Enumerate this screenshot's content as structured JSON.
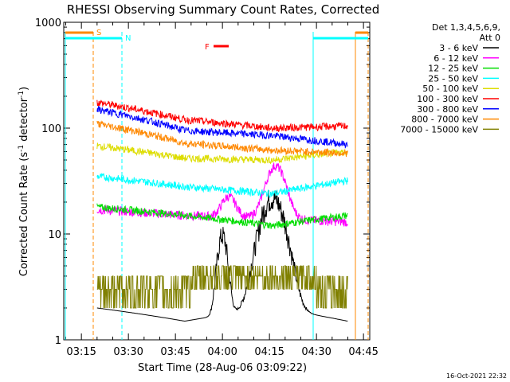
{
  "chart_data": {
    "type": "line",
    "title": "RHESSI Observing Summary Count Rates, Corrected",
    "xlabel": "Start Time (28-Aug-06 03:09:22)",
    "ylabel_main": "Corrected Count Rate (s",
    "ylabel_sup1": "-1",
    "ylabel_mid": " detector",
    "ylabel_sup2": "-1",
    "ylabel_end": ")",
    "xlim": [
      "03:09:22",
      "04:47:00"
    ],
    "ylim": [
      1,
      1000
    ],
    "yscale": "log",
    "x_ticks": [
      "03:15",
      "03:30",
      "03:45",
      "04:00",
      "04:15",
      "04:30",
      "04:45"
    ],
    "y_ticks": [
      "1",
      "10",
      "100",
      "1000"
    ],
    "legend": {
      "placement": "right",
      "header1": "Det 1,3,4,5,6,9,",
      "header2": "Att 0"
    },
    "series": [
      {
        "name": "3 - 6 keV",
        "color": "#000000"
      },
      {
        "name": "6 - 12 keV",
        "color": "#ff00ff"
      },
      {
        "name": "12 - 25 keV",
        "color": "#00dd00"
      },
      {
        "name": "25 - 50 keV",
        "color": "#00ffff"
      },
      {
        "name": "50 - 100 keV",
        "color": "#dddd00"
      },
      {
        "name": "100 - 300 keV",
        "color": "#ff0000"
      },
      {
        "name": "300 - 800 keV",
        "color": "#0000ff"
      },
      {
        "name": "800 - 7000 keV",
        "color": "#ff8800"
      },
      {
        "name": "7000 - 15000 keV",
        "color": "#808000"
      }
    ],
    "markers": {
      "S": {
        "label": "S",
        "color": "#ff8800"
      },
      "N": {
        "label": "N",
        "color": "#00ffff"
      },
      "F": {
        "label": "F",
        "color": "#ff0000"
      }
    },
    "footer_date": "16-Oct-2021 22:32"
  }
}
